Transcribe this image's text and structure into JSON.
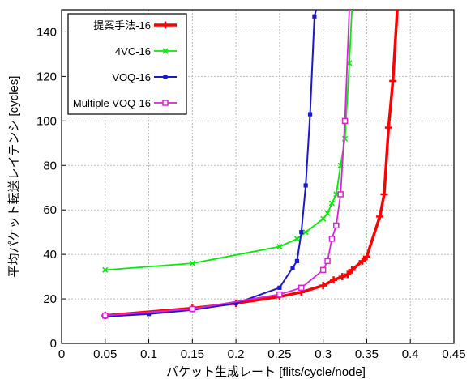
{
  "chart_data": {
    "type": "line",
    "title": "",
    "xlabel": "パケット生成レート [flits/cycle/node]",
    "ylabel": "平均パケット転送レイテンシ [cycles]",
    "xlim": [
      0,
      0.45
    ],
    "ylim": [
      0,
      150
    ],
    "x_ticks": [
      "0",
      "0.05",
      "0.1",
      "0.15",
      "0.2",
      "0.25",
      "0.3",
      "0.35",
      "0.4",
      "0.45"
    ],
    "y_ticks": [
      "0",
      "20",
      "40",
      "60",
      "80",
      "100",
      "120",
      "140"
    ],
    "grid": true,
    "legend_position": "top-left",
    "series": [
      {
        "name": "提案手法-16",
        "color": "#ff0000",
        "marker": "plus",
        "x": [
          0.05,
          0.15,
          0.2,
          0.25,
          0.275,
          0.3,
          0.312,
          0.322,
          0.328,
          0.333,
          0.345,
          0.35,
          0.365,
          0.37,
          0.375,
          0.38,
          0.385
        ],
        "y": [
          12.5,
          15.8,
          18,
          21,
          23,
          26,
          28.5,
          30,
          31,
          33,
          37,
          39,
          57,
          67,
          97,
          118,
          150
        ]
      },
      {
        "name": "4VC-16",
        "color": "#00ee00",
        "marker": "x",
        "x": [
          0.05,
          0.15,
          0.25,
          0.27,
          0.28,
          0.3,
          0.305,
          0.31,
          0.315,
          0.32,
          0.325,
          0.33,
          0.333
        ],
        "y": [
          33,
          36,
          43.5,
          47,
          50,
          56,
          58.5,
          63,
          67,
          80,
          92,
          126,
          150
        ]
      },
      {
        "name": "VOQ-16",
        "color": "#1a1acc",
        "marker": "square",
        "x": [
          0.05,
          0.1,
          0.15,
          0.2,
          0.25,
          0.265,
          0.27,
          0.275,
          0.28,
          0.285,
          0.29,
          0.292
        ],
        "y": [
          12,
          13.2,
          15,
          18,
          25,
          34,
          37,
          50,
          71,
          103,
          147,
          150
        ]
      },
      {
        "name": "Multiple VOQ-16",
        "color": "#dd22dd",
        "marker": "square-open",
        "x": [
          0.05,
          0.15,
          0.25,
          0.275,
          0.3,
          0.305,
          0.31,
          0.315,
          0.32,
          0.325,
          0.33
        ],
        "y": [
          12.5,
          15.5,
          22,
          25,
          33,
          37,
          47,
          53,
          67,
          100,
          150
        ]
      }
    ]
  }
}
